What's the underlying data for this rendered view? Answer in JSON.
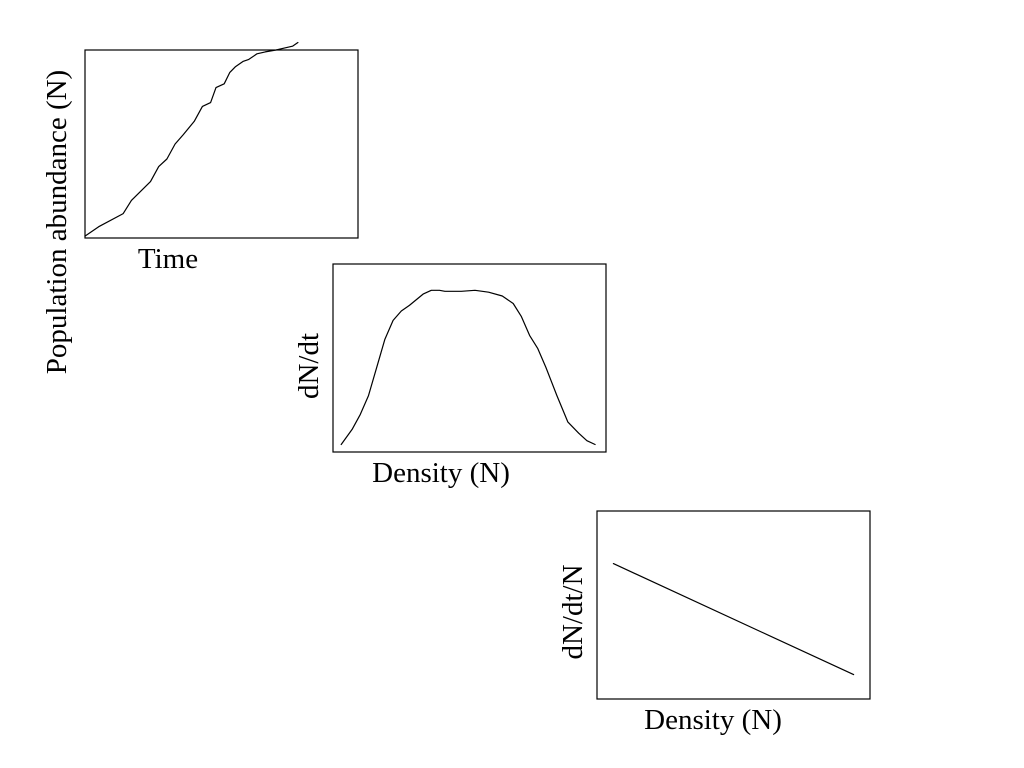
{
  "chart_data": [
    {
      "type": "line",
      "xlabel": "Time",
      "ylabel": "Population abundance (N)",
      "xlim": [
        0,
        1
      ],
      "ylim": [
        0,
        1
      ],
      "grid": false,
      "series": [
        {
          "x": [
            0.0,
            0.05,
            0.14,
            0.17,
            0.24,
            0.27,
            0.3,
            0.33,
            0.36,
            0.4,
            0.43,
            0.46,
            0.48,
            0.51,
            0.53,
            0.55,
            0.58,
            0.6,
            0.63,
            0.66,
            0.7,
            0.73,
            0.76,
            0.78
          ],
          "y": [
            0.01,
            0.06,
            0.13,
            0.2,
            0.3,
            0.38,
            0.42,
            0.5,
            0.55,
            0.62,
            0.7,
            0.72,
            0.8,
            0.82,
            0.88,
            0.91,
            0.94,
            0.95,
            0.98,
            0.99,
            1.0,
            1.01,
            1.02,
            1.04
          ]
        }
      ]
    },
    {
      "type": "line",
      "xlabel": "Density (N)",
      "ylabel": "dN/dt",
      "xlim": [
        0,
        1
      ],
      "ylim": [
        0,
        1
      ],
      "grid": false,
      "series": [
        {
          "x": [
            0.03,
            0.07,
            0.1,
            0.13,
            0.16,
            0.19,
            0.22,
            0.25,
            0.28,
            0.33,
            0.36,
            0.39,
            0.41,
            0.43,
            0.47,
            0.52,
            0.57,
            0.62,
            0.66,
            0.69,
            0.72,
            0.75,
            0.78,
            0.82,
            0.86,
            0.9,
            0.93,
            0.96
          ],
          "y": [
            0.04,
            0.12,
            0.2,
            0.3,
            0.45,
            0.6,
            0.7,
            0.75,
            0.78,
            0.84,
            0.86,
            0.86,
            0.855,
            0.855,
            0.855,
            0.86,
            0.85,
            0.83,
            0.79,
            0.72,
            0.62,
            0.55,
            0.45,
            0.3,
            0.16,
            0.1,
            0.06,
            0.04
          ]
        }
      ]
    },
    {
      "type": "line",
      "xlabel": "Density (N)",
      "ylabel": "dN/dt/N",
      "xlim": [
        0,
        1
      ],
      "ylim": [
        0,
        1
      ],
      "grid": false,
      "series": [
        {
          "x": [
            0.06,
            0.94
          ],
          "y": [
            0.72,
            0.13
          ]
        }
      ]
    }
  ]
}
